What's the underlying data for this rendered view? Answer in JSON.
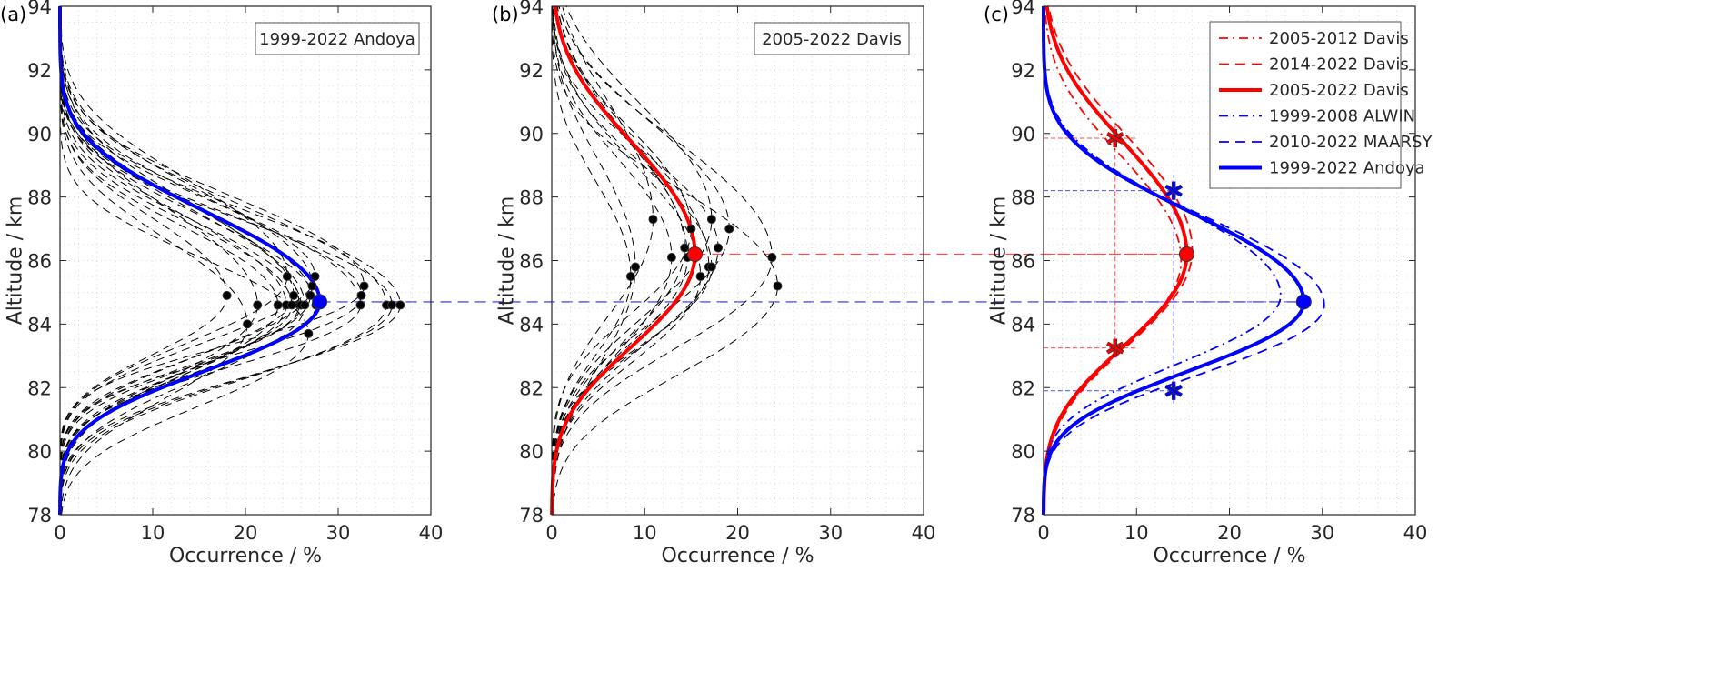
{
  "chart_data": [
    {
      "type": "line",
      "panel_tag": "(a)",
      "title": "",
      "legend_box": "1999-2022 Andoya",
      "xlabel": "Occurrence / %",
      "ylabel": "Altitude / km",
      "xlim": [
        0,
        40
      ],
      "ylim": [
        78,
        94
      ],
      "xticks": [
        0,
        10,
        20,
        30,
        40
      ],
      "yticks": [
        78,
        80,
        82,
        84,
        86,
        88,
        90,
        92,
        94
      ],
      "grid": "minor-dotted",
      "main_curve": {
        "name": "1999-2022 Andoya",
        "color": "#0000ff",
        "style": "solid",
        "peak_occurrence": 28.0,
        "peak_altitude": 84.7,
        "width_above": 2.75,
        "width_below": 2.1
      },
      "peak_marker": {
        "x": 28.0,
        "y": 84.7,
        "color": "#0000ff"
      },
      "individual_years": {
        "style": "dashed",
        "color": "#000000",
        "peaks": [
          {
            "x": 18.0,
            "y": 84.9
          },
          {
            "x": 20.2,
            "y": 84.0
          },
          {
            "x": 21.3,
            "y": 84.6
          },
          {
            "x": 23.5,
            "y": 84.6
          },
          {
            "x": 24.4,
            "y": 84.6
          },
          {
            "x": 24.5,
            "y": 85.5
          },
          {
            "x": 25.0,
            "y": 84.6
          },
          {
            "x": 25.2,
            "y": 84.9
          },
          {
            "x": 25.8,
            "y": 84.6
          },
          {
            "x": 26.0,
            "y": 84.6
          },
          {
            "x": 26.4,
            "y": 84.6
          },
          {
            "x": 26.8,
            "y": 83.7
          },
          {
            "x": 27.0,
            "y": 84.9
          },
          {
            "x": 27.2,
            "y": 85.2
          },
          {
            "x": 27.5,
            "y": 85.5
          },
          {
            "x": 27.6,
            "y": 84.6
          },
          {
            "x": 32.4,
            "y": 84.6
          },
          {
            "x": 32.5,
            "y": 84.9
          },
          {
            "x": 32.8,
            "y": 85.2
          },
          {
            "x": 35.2,
            "y": 84.6
          },
          {
            "x": 35.8,
            "y": 84.6
          },
          {
            "x": 36.7,
            "y": 84.6
          }
        ]
      },
      "reference_line": {
        "y": 84.7,
        "color": "#4d4dff",
        "style": "dashed",
        "extends_to": "panel-c"
      }
    },
    {
      "type": "line",
      "panel_tag": "(b)",
      "title": "",
      "legend_box": "2005-2022 Davis",
      "xlabel": "Occurrence / %",
      "ylabel": "Altitude / km",
      "xlim": [
        0,
        40
      ],
      "ylim": [
        78,
        94
      ],
      "xticks": [
        0,
        10,
        20,
        30,
        40
      ],
      "yticks": [
        78,
        80,
        82,
        84,
        86,
        88,
        90,
        92,
        94
      ],
      "grid": "minor-dotted",
      "main_curve": {
        "name": "2005-2022 Davis",
        "color": "#ff0000",
        "style": "solid",
        "peak_occurrence": 15.4,
        "peak_altitude": 86.2,
        "width_above": 3.4,
        "width_below": 2.8
      },
      "peak_marker": {
        "x": 15.4,
        "y": 86.2,
        "color": "#ff0000"
      },
      "individual_years": {
        "style": "dashed",
        "color": "#000000",
        "peaks": [
          {
            "x": 8.5,
            "y": 85.5
          },
          {
            "x": 9.0,
            "y": 85.8
          },
          {
            "x": 10.9,
            "y": 87.3
          },
          {
            "x": 12.9,
            "y": 86.1
          },
          {
            "x": 14.3,
            "y": 86.4
          },
          {
            "x": 14.6,
            "y": 86.1
          },
          {
            "x": 15.0,
            "y": 87.0
          },
          {
            "x": 16.0,
            "y": 85.5
          },
          {
            "x": 16.9,
            "y": 85.8
          },
          {
            "x": 17.2,
            "y": 85.8
          },
          {
            "x": 17.2,
            "y": 87.3
          },
          {
            "x": 17.9,
            "y": 86.4
          },
          {
            "x": 19.1,
            "y": 87.0
          },
          {
            "x": 23.7,
            "y": 86.1
          },
          {
            "x": 24.3,
            "y": 85.2
          }
        ]
      },
      "reference_line": {
        "y": 86.2,
        "color": "#ff4d4d",
        "style": "dashed",
        "extends_to": "panel-c"
      }
    },
    {
      "type": "line",
      "panel_tag": "(c)",
      "title": "",
      "xlabel": "Occurrence / %",
      "ylabel": "Altitude / km",
      "xlim": [
        0,
        40
      ],
      "ylim": [
        78,
        94
      ],
      "xticks": [
        0,
        10,
        20,
        30,
        40
      ],
      "yticks": [
        78,
        80,
        82,
        84,
        86,
        88,
        90,
        92,
        94
      ],
      "grid": "minor-dotted",
      "legend_position": "top-right",
      "series": [
        {
          "name": "2005-2012 Davis",
          "color": "#ff0000",
          "style": "dashdot",
          "weight": "thin",
          "peak_occurrence": 14.8,
          "peak_altitude": 86.0,
          "width_above": 3.2,
          "width_below": 2.7
        },
        {
          "name": "2014-2022 Davis",
          "color": "#ff0000",
          "style": "dashed",
          "weight": "thin",
          "peak_occurrence": 16.0,
          "peak_altitude": 86.3,
          "width_above": 3.5,
          "width_below": 2.9
        },
        {
          "name": "2005-2022 Davis",
          "color": "#ff0000",
          "style": "solid",
          "weight": "thick",
          "peak_occurrence": 15.4,
          "peak_altitude": 86.2,
          "width_above": 3.4,
          "width_below": 2.8
        },
        {
          "name": "1999-2008 ALWIN",
          "color": "#0000ff",
          "style": "dashdot",
          "weight": "thin",
          "peak_occurrence": 25.5,
          "peak_altitude": 84.9,
          "width_above": 2.75,
          "width_below": 2.1
        },
        {
          "name": "2010-2022 MAARSY",
          "color": "#0000ff",
          "style": "dashed",
          "weight": "thin",
          "peak_occurrence": 30.2,
          "peak_altitude": 84.6,
          "width_above": 2.75,
          "width_below": 2.1
        },
        {
          "name": "1999-2022 Andoya",
          "color": "#0000ff",
          "style": "solid",
          "weight": "thick",
          "peak_occurrence": 28.0,
          "peak_altitude": 84.7,
          "width_above": 2.75,
          "width_below": 2.1
        }
      ],
      "peak_markers": [
        {
          "x": 15.4,
          "y": 86.2,
          "color": "#ff0000",
          "shape": "circle"
        },
        {
          "x": 28.0,
          "y": 84.7,
          "color": "#0000ff",
          "shape": "circle"
        }
      ],
      "half_max_markers": [
        {
          "x": 7.7,
          "y": 89.85,
          "color": "#ff0000",
          "shape": "asterisk"
        },
        {
          "x": 7.7,
          "y": 83.25,
          "color": "#ff0000",
          "shape": "asterisk"
        },
        {
          "x": 14.0,
          "y": 88.2,
          "color": "#0000ff",
          "shape": "asterisk"
        },
        {
          "x": 14.0,
          "y": 81.9,
          "color": "#0000ff",
          "shape": "asterisk"
        }
      ],
      "guide_lines": [
        {
          "axis": "h",
          "y": 89.85,
          "x_to": 10.0,
          "color": "#ff4d4d"
        },
        {
          "axis": "h",
          "y": 83.25,
          "x_to": 10.0,
          "color": "#ff4d4d"
        },
        {
          "axis": "v",
          "x": 7.7,
          "y_from": 83.0,
          "y_to": 90.3,
          "color": "#ff4d4d"
        },
        {
          "axis": "h",
          "y": 88.2,
          "x_to": 14.0,
          "color": "#4d4dff"
        },
        {
          "axis": "h",
          "y": 81.9,
          "x_to": 14.0,
          "color": "#4d4dff"
        },
        {
          "axis": "v",
          "x": 14.0,
          "y_from": 81.5,
          "y_to": 88.7,
          "color": "#4d4dff"
        },
        {
          "axis": "h",
          "y": 86.2,
          "x_to": 15.4,
          "color": "#ff4d4d"
        },
        {
          "axis": "h",
          "y": 84.7,
          "x_to": 28.0,
          "color": "#4d4dff"
        }
      ]
    }
  ]
}
